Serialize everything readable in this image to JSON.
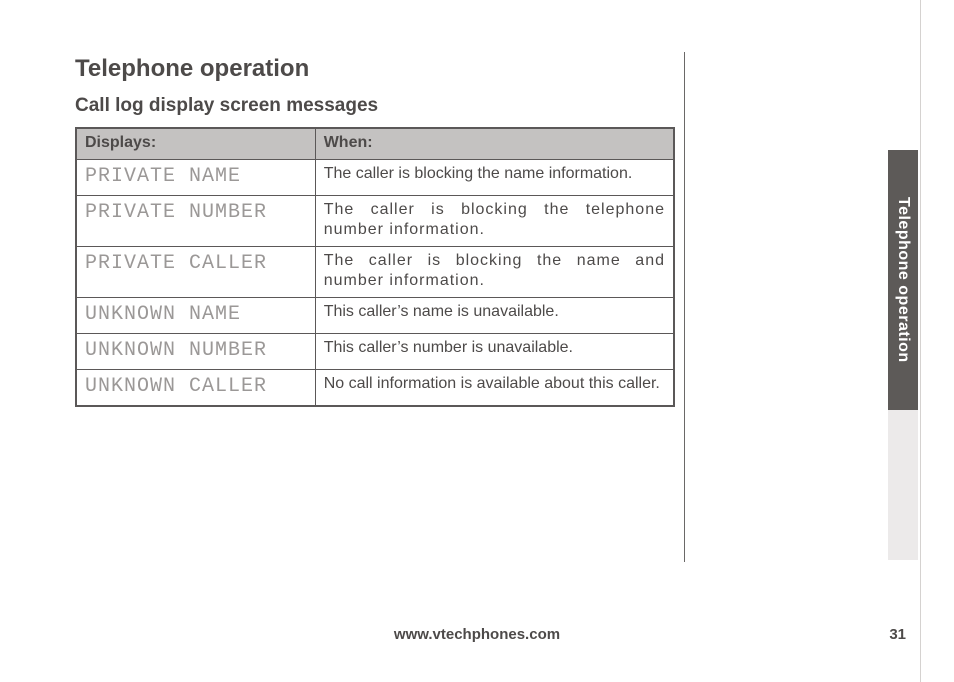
{
  "title": "Telephone operation",
  "subtitle": "Call log display screen messages",
  "table": {
    "header_left": "Displays:",
    "header_right": "When:",
    "rows": [
      {
        "display": "PRIVATE NAME",
        "when": "The caller is blocking the name information.",
        "justify": false
      },
      {
        "display": "PRIVATE NUMBER",
        "when": "The caller is blocking the telephone number information.",
        "justify": true
      },
      {
        "display": "PRIVATE CALLER",
        "when": "The caller is blocking the name and number information.",
        "justify": true
      },
      {
        "display": "UNKNOWN NAME",
        "when": "This caller’s name is unavailable.",
        "justify": false
      },
      {
        "display": "UNKNOWN NUMBER",
        "when": "This caller’s number is unavailable.",
        "justify": false
      },
      {
        "display": "UNKNOWN CALLER",
        "when": "No call information is available about this caller.",
        "justify": false
      }
    ]
  },
  "sidetab": "Telephone operation",
  "footer": {
    "url": "www.vtechphones.com",
    "page": "31"
  },
  "colors": {
    "text": "#4d4a49",
    "table_border": "#5b5858",
    "header_bg": "#c4c2c1",
    "display_text": "#9b9897",
    "sidetab_bg": "#5d5a58",
    "sidetab_text": "#ffffff",
    "sidelight_bg": "#eceaea"
  }
}
